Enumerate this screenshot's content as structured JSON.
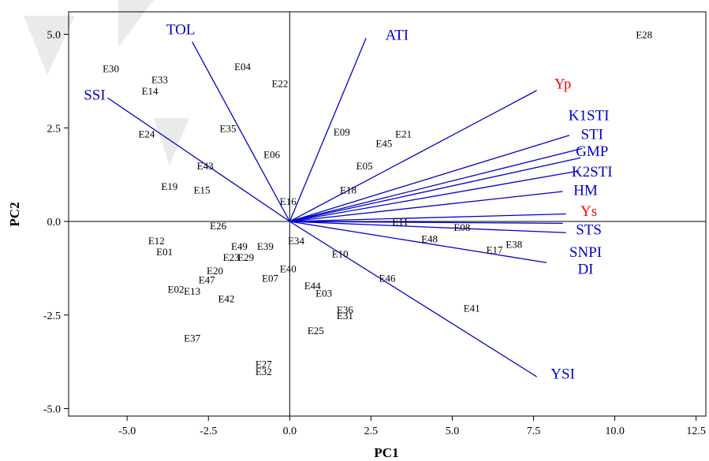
{
  "chart_data": {
    "type": "scatter",
    "subtype": "biplot",
    "title": "",
    "xlabel": "PC1",
    "ylabel": "PC2",
    "xlim": [
      -6.8,
      12.8
    ],
    "ylim": [
      -5.2,
      5.6
    ],
    "x_ticks": [
      -5.0,
      -2.5,
      0.0,
      2.5,
      5.0,
      7.5,
      10.0,
      12.5
    ],
    "y_ticks": [
      -5.0,
      -2.5,
      0.0,
      2.5,
      5.0
    ],
    "reference_lines": {
      "x": 0,
      "y": 0
    },
    "grid": false,
    "legend": "none",
    "colors": {
      "vector": "#0000cc",
      "highlight": "#ff0000",
      "points": "#000000",
      "axes": "#000000"
    },
    "points": [
      {
        "label": "E28",
        "x": 10.9,
        "y": 5.0
      },
      {
        "label": "E30",
        "x": -5.5,
        "y": 4.1
      },
      {
        "label": "E04",
        "x": -1.45,
        "y": 4.15
      },
      {
        "label": "E33",
        "x": -4.0,
        "y": 3.8
      },
      {
        "label": "E22",
        "x": -0.3,
        "y": 3.7
      },
      {
        "label": "E14",
        "x": -4.3,
        "y": 3.5
      },
      {
        "label": "E09",
        "x": 1.6,
        "y": 2.4
      },
      {
        "label": "E21",
        "x": 3.5,
        "y": 2.35
      },
      {
        "label": "E35",
        "x": -1.9,
        "y": 2.5
      },
      {
        "label": "E24",
        "x": -4.4,
        "y": 2.35
      },
      {
        "label": "E45",
        "x": 2.9,
        "y": 2.1
      },
      {
        "label": "E06",
        "x": -0.55,
        "y": 1.8
      },
      {
        "label": "E43",
        "x": -2.6,
        "y": 1.5
      },
      {
        "label": "E05",
        "x": 2.3,
        "y": 1.5
      },
      {
        "label": "E19",
        "x": -3.7,
        "y": 0.95
      },
      {
        "label": "E15",
        "x": -2.7,
        "y": 0.85
      },
      {
        "label": "E18",
        "x": 1.8,
        "y": 0.85
      },
      {
        "label": "E16",
        "x": -0.05,
        "y": 0.55
      },
      {
        "label": "E11",
        "x": 3.4,
        "y": 0.0
      },
      {
        "label": "E26",
        "x": -2.2,
        "y": -0.1
      },
      {
        "label": "E08",
        "x": 5.3,
        "y": -0.15
      },
      {
        "label": "E48",
        "x": 4.3,
        "y": -0.45
      },
      {
        "label": "E12",
        "x": -4.1,
        "y": -0.5
      },
      {
        "label": "E34",
        "x": 0.2,
        "y": -0.5
      },
      {
        "label": "E38",
        "x": 6.9,
        "y": -0.6
      },
      {
        "label": "E49",
        "x": -1.55,
        "y": -0.65
      },
      {
        "label": "E39",
        "x": -0.75,
        "y": -0.65
      },
      {
        "label": "E17",
        "x": 6.3,
        "y": -0.75
      },
      {
        "label": "E01",
        "x": -3.85,
        "y": -0.8
      },
      {
        "label": "E10",
        "x": 1.55,
        "y": -0.85
      },
      {
        "label": "E23",
        "x": -1.8,
        "y": -0.95
      },
      {
        "label": "E29",
        "x": -1.35,
        "y": -0.95
      },
      {
        "label": "E40",
        "x": -0.05,
        "y": -1.25
      },
      {
        "label": "E20",
        "x": -2.3,
        "y": -1.3
      },
      {
        "label": "E07",
        "x": -0.6,
        "y": -1.5
      },
      {
        "label": "E46",
        "x": 3.0,
        "y": -1.5
      },
      {
        "label": "E47",
        "x": -2.55,
        "y": -1.55
      },
      {
        "label": "E44",
        "x": 0.7,
        "y": -1.7
      },
      {
        "label": "E02",
        "x": -3.5,
        "y": -1.8
      },
      {
        "label": "E13",
        "x": -3.0,
        "y": -1.85
      },
      {
        "label": "E03",
        "x": 1.05,
        "y": -1.9
      },
      {
        "label": "E42",
        "x": -1.95,
        "y": -2.05
      },
      {
        "label": "E41",
        "x": 5.6,
        "y": -2.3
      },
      {
        "label": "E36",
        "x": 1.7,
        "y": -2.35
      },
      {
        "label": "E31",
        "x": 1.7,
        "y": -2.5
      },
      {
        "label": "E25",
        "x": 0.8,
        "y": -2.9
      },
      {
        "label": "E37",
        "x": -3.0,
        "y": -3.1
      },
      {
        "label": "E27",
        "x": -0.8,
        "y": -3.8
      },
      {
        "label": "E32",
        "x": -0.8,
        "y": -4.0
      }
    ],
    "vectors": [
      {
        "label": "TOL",
        "x": -3.0,
        "y": 4.8,
        "label_x": -3.35,
        "label_y": 5.15,
        "highlight": false
      },
      {
        "label": "ATI",
        "x": 2.35,
        "y": 4.9,
        "label_x": 3.3,
        "label_y": 5.0,
        "highlight": false
      },
      {
        "label": "SSI",
        "x": -5.6,
        "y": 3.3,
        "label_x": -6.0,
        "label_y": 3.4,
        "highlight": false
      },
      {
        "label": "Yp",
        "x": 7.6,
        "y": 3.5,
        "label_x": 8.4,
        "label_y": 3.7,
        "highlight": true
      },
      {
        "label": "K1STI",
        "x": 8.6,
        "y": 2.3,
        "label_x": 9.2,
        "label_y": 2.85,
        "highlight": false
      },
      {
        "label": "STI",
        "x": 9.0,
        "y": 1.95,
        "label_x": 9.3,
        "label_y": 2.35,
        "highlight": false
      },
      {
        "label": "GMP",
        "x": 8.95,
        "y": 1.7,
        "label_x": 9.3,
        "label_y": 1.9,
        "highlight": false
      },
      {
        "label": "K2STI",
        "x": 8.9,
        "y": 1.35,
        "label_x": 9.3,
        "label_y": 1.35,
        "highlight": false
      },
      {
        "label": "HM",
        "x": 8.4,
        "y": 0.8,
        "label_x": 9.1,
        "label_y": 0.85,
        "highlight": false
      },
      {
        "label": "Ys",
        "x": 8.5,
        "y": 0.2,
        "label_x": 9.2,
        "label_y": 0.3,
        "highlight": true
      },
      {
        "label": "STS",
        "x": 8.4,
        "y": -0.05,
        "label_x": 9.2,
        "label_y": -0.2,
        "highlight": false
      },
      {
        "label": "SNPI",
        "x": 8.5,
        "y": -0.3,
        "label_x": 9.1,
        "label_y": -0.8,
        "highlight": false
      },
      {
        "label": "DI",
        "x": 7.9,
        "y": -1.1,
        "label_x": 9.1,
        "label_y": -1.25,
        "highlight": false
      },
      {
        "label": "YSI",
        "x": 7.6,
        "y": -4.15,
        "label_x": 8.4,
        "label_y": -4.05,
        "highlight": false
      }
    ]
  }
}
